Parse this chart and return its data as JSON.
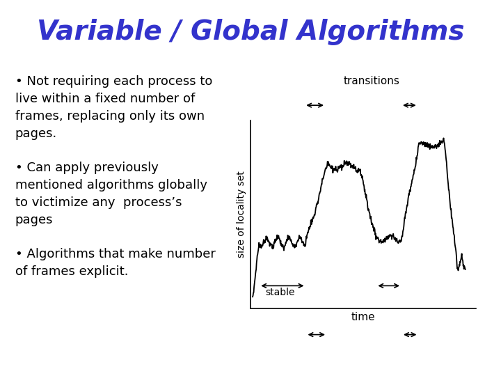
{
  "title": "Variable / Global Algorithms",
  "title_color": "#3333cc",
  "title_fontsize": 28,
  "background_color": "#ffffff",
  "bullet_points": [
    "Not requiring each process to\nlive within a fixed number of\nframes, replacing only its own\npages.",
    "Can apply previously\nmentioned algorithms globally\nto victimize any  process’s\npages",
    "Algorithms that make number\nof frames explicit."
  ],
  "bullet_fontsize": 13,
  "bullet_color": "#000000",
  "graph_ylabel": "size of locality set",
  "graph_xlabel": "time",
  "graph_label_transitions": "transitions",
  "graph_label_stable": "stable"
}
